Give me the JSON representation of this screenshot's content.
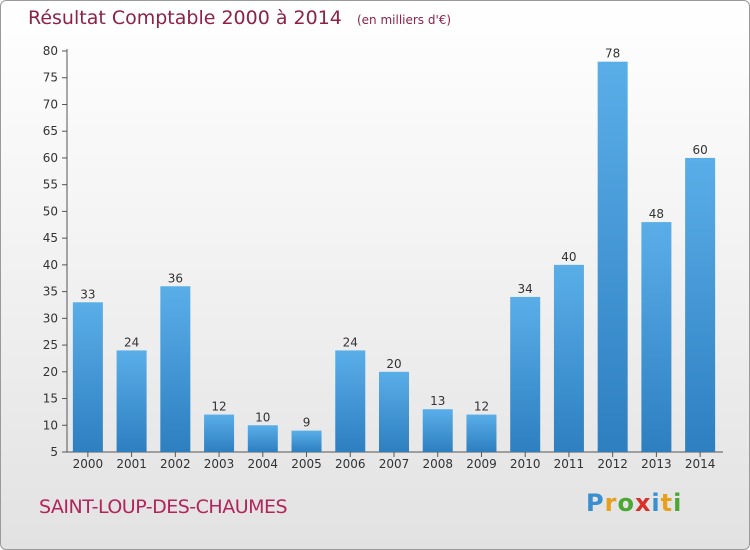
{
  "chart_data": {
    "type": "bar",
    "title": "Résultat Comptable 2000 à 2014",
    "subtitle": "(en milliers d'€)",
    "xlabel": "",
    "ylabel": "",
    "categories": [
      "2000",
      "2001",
      "2002",
      "2003",
      "2004",
      "2005",
      "2006",
      "2007",
      "2008",
      "2009",
      "2010",
      "2011",
      "2012",
      "2013",
      "2014"
    ],
    "values": [
      33,
      24,
      36,
      12,
      10,
      9,
      24,
      20,
      13,
      12,
      34,
      40,
      78,
      48,
      60
    ],
    "ylim": [
      5,
      80
    ],
    "yticks": [
      5,
      10,
      15,
      20,
      25,
      30,
      35,
      40,
      45,
      50,
      55,
      60,
      65,
      70,
      75,
      80
    ],
    "grid": false,
    "bar_color_top": "#5aaee8",
    "bar_color_bottom": "#2d7fc0"
  },
  "footer": {
    "city": "SAINT-LOUP-DES-CHAUMES",
    "logo_letters": [
      "P",
      "r",
      "o",
      "x",
      "i",
      "t",
      "i"
    ],
    "logo_colors": [
      "#3a8fd0",
      "#e6a020",
      "#4aa832",
      "#d8302a",
      "#3a8fd0",
      "#e6a020",
      "#4aa832"
    ]
  }
}
